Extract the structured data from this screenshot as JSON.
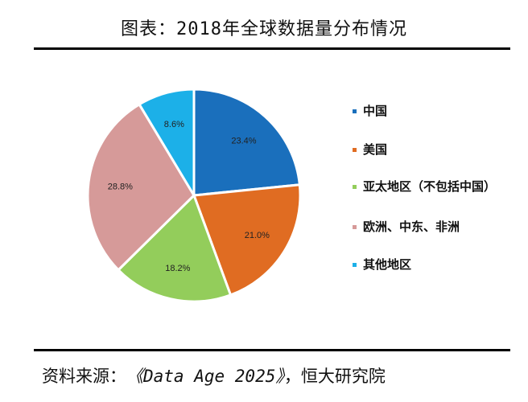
{
  "header": {
    "title": "图表：2018年全球数据量分布情况"
  },
  "colors": {
    "china": "#1a6fbc",
    "usa": "#e06c22",
    "apac": "#93cd5b",
    "emea": "#d69a99",
    "other": "#1cb0e8"
  },
  "chart_data": {
    "type": "pie",
    "title": "2018年全球数据量分布情况",
    "slices": [
      {
        "name": "中国",
        "value": 23.4,
        "label": "23.4%",
        "color": "#1a6fbc"
      },
      {
        "name": "美国",
        "value": 21.0,
        "label": "21.0%",
        "color": "#e06c22"
      },
      {
        "name": "亚太地区（不包括中国）",
        "value": 18.2,
        "label": "18.2%",
        "color": "#93cd5b"
      },
      {
        "name": "欧洲、中东、非洲",
        "value": 28.8,
        "label": "28.8%",
        "color": "#d69a99"
      },
      {
        "name": "其他地区",
        "value": 8.6,
        "label": "8.6%",
        "color": "#1cb0e8"
      }
    ],
    "legend": {
      "position": "right",
      "entries": [
        "中国",
        "美国",
        "亚太地区（不包括中国）",
        "欧洲、中东、非洲",
        "其他地区"
      ]
    }
  },
  "footer": {
    "source_label": "资料来源：",
    "source_title": "《Data Age 2025》",
    "source_org": "，恒大研究院"
  }
}
